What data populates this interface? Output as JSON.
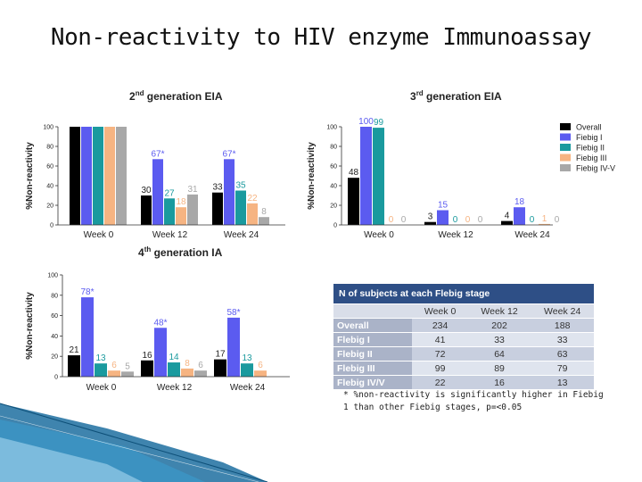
{
  "title": "Non-reactivity to HIV enzyme Immunoassay",
  "legend": [
    "Overall",
    "Fiebig I",
    "Fiebig II",
    "Fiebig III",
    "Fiebig IV-V"
  ],
  "colors": [
    "#000000",
    "#5b5bf0",
    "#1a9a9e",
    "#f6b482",
    "#a8a8a8"
  ],
  "chart_data": [
    {
      "type": "bar",
      "title": "2nd generation EIA",
      "title_main": "2",
      "title_sup": "nd",
      "title_rest": " generation EIA",
      "ylabel": "%Non-reactivity",
      "ylim": [
        0,
        100
      ],
      "yticks": [
        "0",
        "20",
        "40",
        "60",
        "80",
        "100"
      ],
      "categories": [
        "Week 0",
        "Week 12",
        "Week 24"
      ],
      "series": [
        {
          "name": "Overall",
          "values": [
            100,
            30,
            33
          ]
        },
        {
          "name": "Fiebig I",
          "values": [
            100,
            67,
            67
          ]
        },
        {
          "name": "Fiebig II",
          "values": [
            100,
            27,
            35
          ]
        },
        {
          "name": "Fiebig III",
          "values": [
            100,
            18,
            22
          ]
        },
        {
          "name": "Fiebig IV-V",
          "values": [
            100,
            31,
            8
          ]
        }
      ],
      "labels": [
        [
          "",
          "",
          "",
          "",
          ""
        ],
        [
          "30",
          "67*",
          "27",
          "18",
          "31"
        ],
        [
          "33",
          "67*",
          "35",
          "22",
          "8"
        ]
      ]
    },
    {
      "type": "bar",
      "title": "3rd generation EIA",
      "title_main": "3",
      "title_sup": "rd",
      "title_rest": " generation EIA",
      "ylabel": "%Non-reactivity",
      "ylim": [
        0,
        100
      ],
      "yticks": [
        "0",
        "20",
        "40",
        "60",
        "80",
        "100"
      ],
      "categories": [
        "Week 0",
        "Week 12",
        "Week 24"
      ],
      "series": [
        {
          "name": "Overall",
          "values": [
            48,
            3,
            4
          ]
        },
        {
          "name": "Fiebig I",
          "values": [
            100,
            15,
            18
          ]
        },
        {
          "name": "Fiebig II",
          "values": [
            99,
            0,
            0
          ]
        },
        {
          "name": "Fiebig III",
          "values": [
            0,
            0,
            1
          ]
        },
        {
          "name": "Fiebig IV-V",
          "values": [
            0,
            0,
            0
          ]
        }
      ],
      "labels": [
        [
          "48",
          "100",
          "99",
          "0",
          "0"
        ],
        [
          "3",
          "15",
          "0",
          "0",
          "0"
        ],
        [
          "4",
          "18",
          "0",
          "1",
          "0"
        ]
      ]
    },
    {
      "type": "bar",
      "title": "4th generation IA",
      "title_main": "4",
      "title_sup": "th",
      "title_rest": " generation IA",
      "ylabel": "%Non-reactivity",
      "ylim": [
        0,
        100
      ],
      "yticks": [
        "0",
        "20",
        "40",
        "60",
        "80",
        "100"
      ],
      "categories": [
        "Week 0",
        "Week 12",
        "Week 24"
      ],
      "series": [
        {
          "name": "Overall",
          "values": [
            21,
            16,
            17
          ]
        },
        {
          "name": "Fiebig I",
          "values": [
            78,
            48,
            58
          ]
        },
        {
          "name": "Fiebig II",
          "values": [
            13,
            14,
            13
          ]
        },
        {
          "name": "Fiebig III",
          "values": [
            6,
            8,
            6
          ]
        },
        {
          "name": "Fiebig IV-V",
          "values": [
            5,
            6,
            0
          ]
        }
      ],
      "labels": [
        [
          "21",
          "78*",
          "13",
          "6",
          "5"
        ],
        [
          "16",
          "48*",
          "14",
          "8",
          "6"
        ],
        [
          "17",
          "58*",
          "13",
          "6",
          ""
        ]
      ]
    }
  ],
  "table": {
    "caption": "N of subjects at each Flebig stage",
    "columns": [
      "",
      "Week 0",
      "Week 12",
      "Week 24"
    ],
    "rows": [
      [
        "Overall",
        "234",
        "202",
        "188"
      ],
      [
        "Flebig I",
        "41",
        "33",
        "33"
      ],
      [
        "Flebig II",
        "72",
        "64",
        "63"
      ],
      [
        "Flebig III",
        "99",
        "89",
        "79"
      ],
      [
        "Flebig IV/V",
        "22",
        "16",
        "13"
      ]
    ]
  },
  "footnote": "* %non-reactivity is significantly higher in Fiebig 1 than other Fiebig stages, p=<0.05"
}
